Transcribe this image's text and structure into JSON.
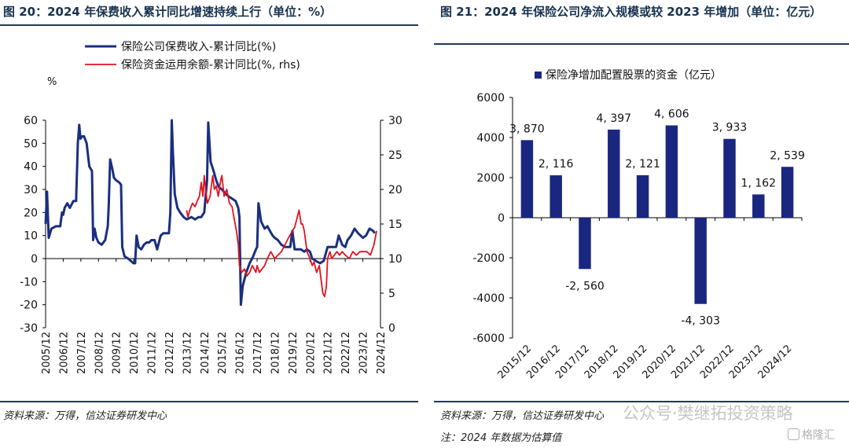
{
  "left": {
    "title": "图 20：2024 年保费收入累计同比增速持续上行（单位：%）",
    "source": "资料来源：万得，信达证券研发中心",
    "chart_data": {
      "type": "line",
      "left_unit": "%",
      "y_ticks": [
        60,
        50,
        40,
        30,
        20,
        10,
        0,
        -10,
        -20,
        -30
      ],
      "ylim": [
        -30,
        60
      ],
      "y2_ticks": [
        30,
        25,
        20,
        15,
        10,
        5,
        0
      ],
      "y2lim": [
        0,
        30
      ],
      "x_ticks": [
        "2005/12",
        "2006/12",
        "2007/12",
        "2008/12",
        "2009/12",
        "2010/12",
        "2011/12",
        "2012/12",
        "2013/12",
        "2014/12",
        "2015/12",
        "2016/12",
        "2017/12",
        "2018/12",
        "2019/12",
        "2020/12",
        "2021/12",
        "2022/12",
        "2023/12",
        "2024/12"
      ],
      "series": [
        {
          "name": "保险公司保费收入-累计同比(%)",
          "axis": "left",
          "color": "#1a2f80",
          "points": [
            [
              2005.92,
              15
            ],
            [
              2006.0,
              29
            ],
            [
              2006.1,
              9
            ],
            [
              2006.25,
              13
            ],
            [
              2006.5,
              14
            ],
            [
              2006.75,
              14
            ],
            [
              2006.85,
              20
            ],
            [
              2006.92,
              19
            ],
            [
              2007.0,
              22
            ],
            [
              2007.15,
              24
            ],
            [
              2007.3,
              22
            ],
            [
              2007.5,
              25
            ],
            [
              2007.65,
              25
            ],
            [
              2007.75,
              50
            ],
            [
              2007.83,
              58
            ],
            [
              2007.9,
              52
            ],
            [
              2008.0,
              53
            ],
            [
              2008.1,
              53
            ],
            [
              2008.25,
              50
            ],
            [
              2008.4,
              40
            ],
            [
              2008.55,
              38
            ],
            [
              2008.62,
              8
            ],
            [
              2008.7,
              13
            ],
            [
              2008.8,
              9
            ],
            [
              2008.92,
              7
            ],
            [
              2009.1,
              6
            ],
            [
              2009.3,
              8
            ],
            [
              2009.45,
              14
            ],
            [
              2009.5,
              23
            ],
            [
              2009.58,
              43
            ],
            [
              2009.7,
              39
            ],
            [
              2009.8,
              35
            ],
            [
              2009.92,
              34
            ],
            [
              2010.1,
              33
            ],
            [
              2010.2,
              32
            ],
            [
              2010.27,
              5
            ],
            [
              2010.4,
              1
            ],
            [
              2010.6,
              0
            ],
            [
              2010.75,
              -1
            ],
            [
              2010.9,
              -2
            ],
            [
              2011.0,
              -2
            ],
            [
              2011.08,
              10
            ],
            [
              2011.2,
              5
            ],
            [
              2011.35,
              4
            ],
            [
              2011.5,
              6
            ],
            [
              2011.65,
              7
            ],
            [
              2011.8,
              7
            ],
            [
              2011.92,
              8
            ],
            [
              2012.1,
              8
            ],
            [
              2012.25,
              4
            ],
            [
              2012.45,
              10
            ],
            [
              2012.6,
              11
            ],
            [
              2012.75,
              11
            ],
            [
              2012.92,
              11
            ],
            [
              2013.0,
              20
            ],
            [
              2013.08,
              60
            ],
            [
              2013.15,
              45
            ],
            [
              2013.25,
              28
            ],
            [
              2013.4,
              22
            ],
            [
              2013.55,
              20
            ],
            [
              2013.75,
              18
            ],
            [
              2013.92,
              17
            ],
            [
              2014.2,
              18
            ],
            [
              2014.4,
              17
            ],
            [
              2014.6,
              18
            ],
            [
              2014.75,
              18
            ],
            [
              2014.92,
              20
            ],
            [
              2015.08,
              34
            ],
            [
              2015.15,
              59
            ],
            [
              2015.28,
              42
            ],
            [
              2015.45,
              38
            ],
            [
              2015.6,
              34
            ],
            [
              2015.75,
              31
            ],
            [
              2015.92,
              30
            ],
            [
              2016.15,
              28
            ],
            [
              2016.3,
              27
            ],
            [
              2016.5,
              26
            ],
            [
              2016.7,
              25
            ],
            [
              2016.85,
              22
            ],
            [
              2016.92,
              18
            ],
            [
              2017.0,
              -20
            ],
            [
              2017.1,
              -12
            ],
            [
              2017.3,
              -6
            ],
            [
              2017.5,
              -2
            ],
            [
              2017.7,
              1
            ],
            [
              2017.85,
              4
            ],
            [
              2017.92,
              5
            ],
            [
              2018.0,
              24
            ],
            [
              2018.15,
              16
            ],
            [
              2018.35,
              13
            ],
            [
              2018.5,
              14
            ],
            [
              2018.65,
              12
            ],
            [
              2018.8,
              10
            ],
            [
              2018.92,
              9
            ],
            [
              2019.1,
              8
            ],
            [
              2019.3,
              6
            ],
            [
              2019.5,
              5
            ],
            [
              2019.65,
              5
            ],
            [
              2019.8,
              5
            ],
            [
              2019.92,
              12
            ],
            [
              2020.05,
              4
            ],
            [
              2020.2,
              4
            ],
            [
              2020.4,
              4
            ],
            [
              2020.6,
              3
            ],
            [
              2020.75,
              4
            ],
            [
              2020.92,
              3
            ],
            [
              2021.05,
              0
            ],
            [
              2021.25,
              -1
            ],
            [
              2021.5,
              -2
            ],
            [
              2021.7,
              -1
            ],
            [
              2021.92,
              5
            ],
            [
              2022.2,
              5
            ],
            [
              2022.4,
              5
            ],
            [
              2022.55,
              10
            ],
            [
              2022.75,
              6
            ],
            [
              2022.92,
              5
            ],
            [
              2023.05,
              8
            ],
            [
              2023.25,
              10
            ],
            [
              2023.45,
              13
            ],
            [
              2023.65,
              11
            ],
            [
              2023.92,
              9
            ],
            [
              2024.1,
              10
            ],
            [
              2024.3,
              13
            ],
            [
              2024.5,
              12
            ],
            [
              2024.6,
              11
            ]
          ]
        },
        {
          "name": "保险资金运用余额-累计同比(%, rhs)",
          "axis": "right",
          "color": "#e0141e",
          "points": [
            [
              2013.92,
              17
            ],
            [
              2014.0,
              16
            ],
            [
              2014.1,
              17
            ],
            [
              2014.25,
              18
            ],
            [
              2014.4,
              17.5
            ],
            [
              2014.55,
              18.5
            ],
            [
              2014.65,
              19
            ],
            [
              2014.75,
              21
            ],
            [
              2014.85,
              19
            ],
            [
              2014.92,
              22
            ],
            [
              2015.0,
              20
            ],
            [
              2015.1,
              18
            ],
            [
              2015.25,
              19
            ],
            [
              2015.4,
              22
            ],
            [
              2015.5,
              20
            ],
            [
              2015.6,
              20.5
            ],
            [
              2015.72,
              19
            ],
            [
              2015.83,
              21
            ],
            [
              2015.92,
              22
            ],
            [
              2016.05,
              19
            ],
            [
              2016.2,
              20
            ],
            [
              2016.35,
              18
            ],
            [
              2016.5,
              17.5
            ],
            [
              2016.6,
              16
            ],
            [
              2016.75,
              14
            ],
            [
              2016.85,
              12
            ],
            [
              2016.92,
              9
            ],
            [
              2017.05,
              8
            ],
            [
              2017.2,
              8.5
            ],
            [
              2017.35,
              7.5
            ],
            [
              2017.5,
              8
            ],
            [
              2017.65,
              9
            ],
            [
              2017.85,
              8
            ],
            [
              2017.92,
              9
            ],
            [
              2018.05,
              8
            ],
            [
              2018.2,
              8.5
            ],
            [
              2018.35,
              9
            ],
            [
              2018.5,
              10
            ],
            [
              2018.7,
              11
            ],
            [
              2018.92,
              10
            ],
            [
              2019.1,
              10.5
            ],
            [
              2019.3,
              11
            ],
            [
              2019.5,
              12
            ],
            [
              2019.7,
              13
            ],
            [
              2019.92,
              14
            ],
            [
              2020.05,
              14.5
            ],
            [
              2020.2,
              16
            ],
            [
              2020.3,
              17
            ],
            [
              2020.42,
              15
            ],
            [
              2020.5,
              15
            ],
            [
              2020.6,
              14
            ],
            [
              2020.75,
              11
            ],
            [
              2020.92,
              10
            ],
            [
              2021.05,
              9
            ],
            [
              2021.15,
              9.5
            ],
            [
              2021.3,
              8
            ],
            [
              2021.45,
              9
            ],
            [
              2021.55,
              7
            ],
            [
              2021.65,
              5
            ],
            [
              2021.75,
              4.5
            ],
            [
              2021.85,
              6
            ],
            [
              2021.92,
              10
            ],
            [
              2022.05,
              11
            ],
            [
              2022.15,
              10
            ],
            [
              2022.3,
              10.5
            ],
            [
              2022.45,
              11
            ],
            [
              2022.6,
              10.5
            ],
            [
              2022.75,
              11
            ],
            [
              2022.92,
              10.5
            ],
            [
              2023.15,
              10
            ],
            [
              2023.35,
              11
            ],
            [
              2023.55,
              10.5
            ],
            [
              2023.75,
              11
            ],
            [
              2023.92,
              11
            ],
            [
              2024.15,
              11
            ],
            [
              2024.35,
              10.5
            ],
            [
              2024.55,
              12
            ],
            [
              2024.7,
              14
            ]
          ]
        }
      ]
    }
  },
  "right": {
    "title": "图 21：2024 年保险公司净流入规模或较 2023 年增加（单位：亿元）",
    "source": "资料来源：万得，信达证券研发中心",
    "note": "注：2024 年数据为估算值",
    "watermark": "公众号·樊继拓投资策略",
    "logo": "格隆汇",
    "chart_data": {
      "type": "bar",
      "categories": [
        "2015/12",
        "2016/12",
        "2017/12",
        "2018/12",
        "2019/12",
        "2020/12",
        "2021/12",
        "2022/12",
        "2023/12",
        "2024/12"
      ],
      "series": [
        {
          "name": "保险净增加配置股票的资金（亿元）",
          "color": "#1a2780",
          "values": [
            3870,
            2116,
            -2560,
            4397,
            2121,
            4606,
            -4303,
            3933,
            1162,
            2539
          ]
        }
      ],
      "data_labels": [
        "3, 870",
        "2, 116",
        "-2, 560",
        "4, 397",
        "2, 121",
        "4, 606",
        "-4, 303",
        "3, 933",
        "1, 162",
        "2, 539"
      ],
      "ylim": [
        -6000,
        6000
      ],
      "y_ticks": [
        6000,
        4000,
        2000,
        0,
        -2000,
        -4000,
        -6000
      ]
    }
  }
}
